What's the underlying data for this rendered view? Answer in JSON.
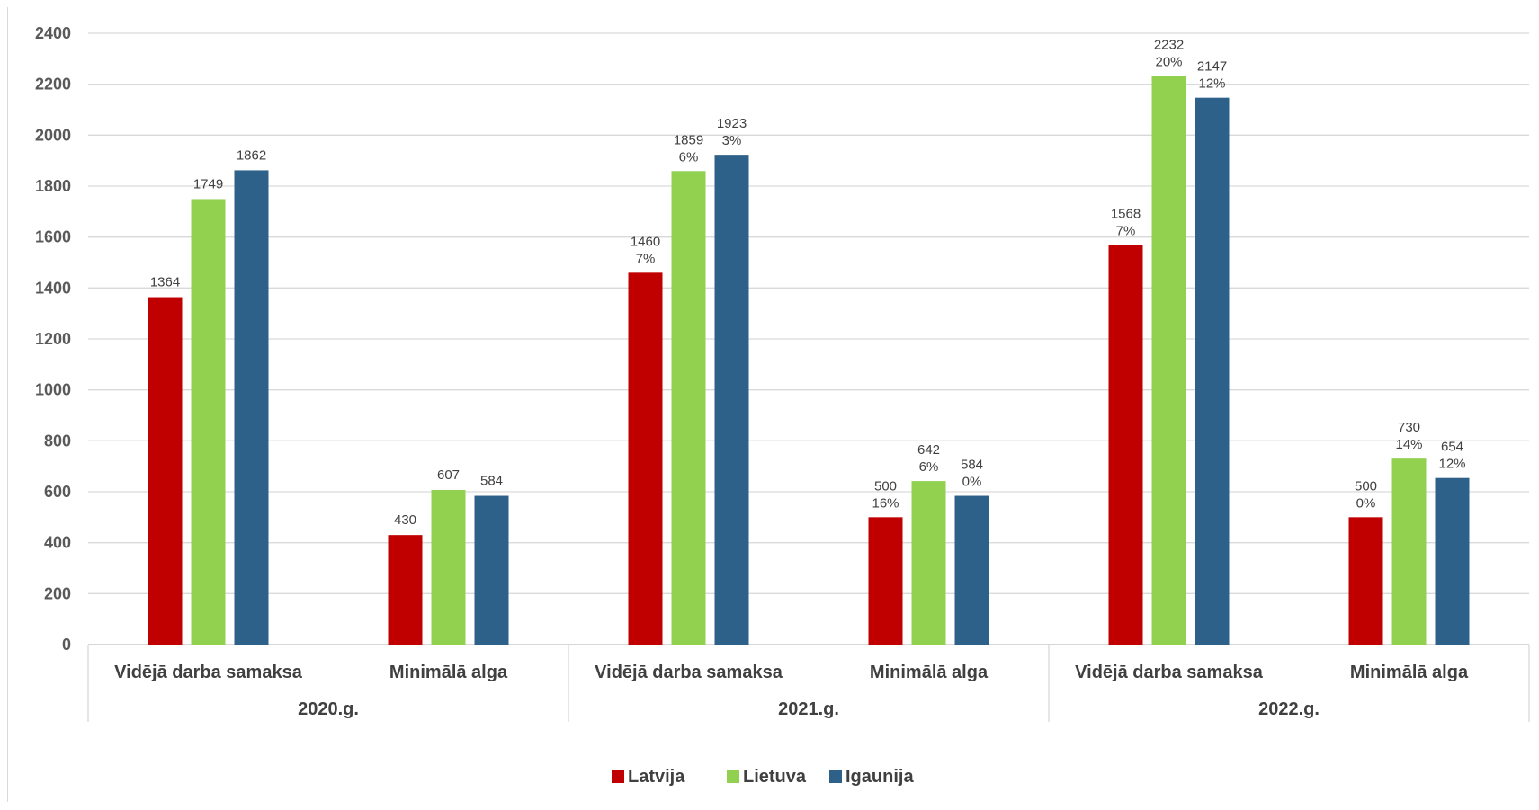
{
  "chart_data": {
    "type": "bar",
    "title": "",
    "xlabel": "",
    "ylabel": "",
    "ylim": [
      0,
      2400
    ],
    "yticks": [
      0,
      200,
      400,
      600,
      800,
      1000,
      1200,
      1400,
      1600,
      1800,
      2000,
      2200,
      2400
    ],
    "grid": true,
    "legend_position": "bottom-center",
    "groups": [
      {
        "label": "2020.g.",
        "categories": [
          "Vidējā darba samaksa",
          "Minimālā alga"
        ]
      },
      {
        "label": "2021.g.",
        "categories": [
          "Vidējā darba samaksa",
          "Minimālā alga"
        ]
      },
      {
        "label": "2022.g.",
        "categories": [
          "Vidējā darba samaksa",
          "Minimālā alga"
        ]
      }
    ],
    "series": [
      {
        "name": "Latvija",
        "color": "#c00000",
        "values": [
          1364,
          430,
          1460,
          500,
          1568,
          500
        ],
        "growth": [
          "",
          "",
          "7%",
          "16%",
          "7%",
          "0%"
        ]
      },
      {
        "name": "Lietuva",
        "color": "#92d050",
        "values": [
          1749,
          607,
          1859,
          642,
          2232,
          730
        ],
        "growth": [
          "",
          "",
          "6%",
          "6%",
          "20%",
          "14%"
        ]
      },
      {
        "name": "Igaunija",
        "color": "#2e6189",
        "values": [
          1862,
          584,
          1923,
          584,
          2147,
          654
        ],
        "growth": [
          "",
          "",
          "3%",
          "0%",
          "12%",
          "12%"
        ]
      }
    ]
  }
}
